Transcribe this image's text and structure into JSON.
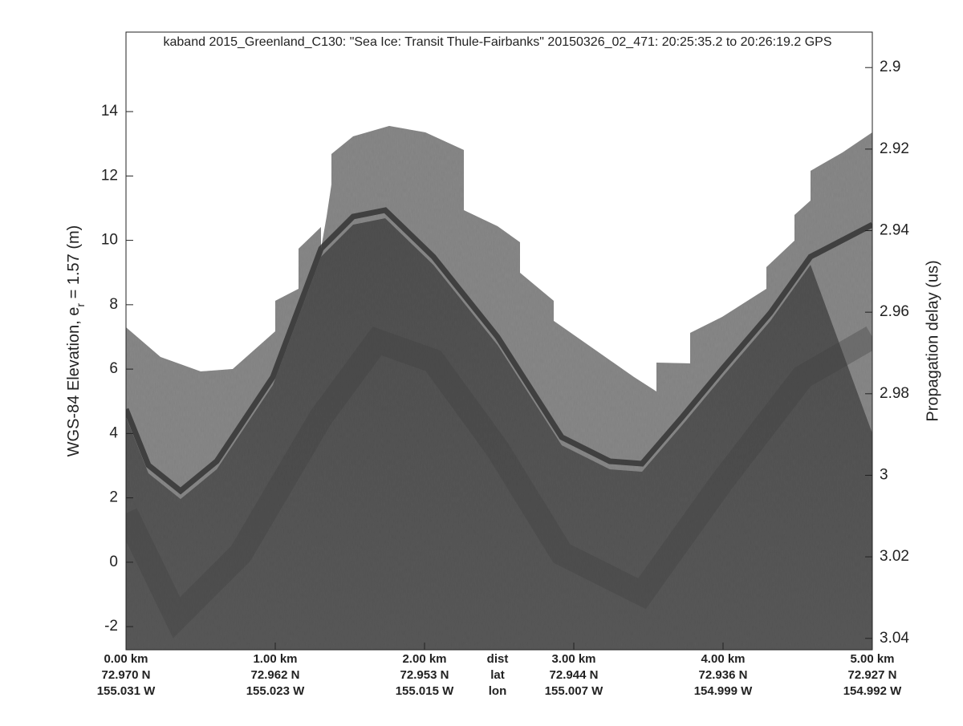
{
  "chart_data": {
    "type": "echogram",
    "title": "kaband 2015_Greenland_C130: \"Sea Ice: Transit Thule-Fairbanks\"  20150326_02_471: 20:25:35.2 to 20:26:19.2 GPS",
    "ylabel": {
      "text": "WGS-84 Elevation, e",
      "subscript": "r",
      "suffix": " = 1.57 (m)"
    },
    "y2label": "Propagation delay (us)",
    "xlim": [
      0,
      5
    ],
    "xticks": [
      {
        "value": 0,
        "label": "0.00 km"
      },
      {
        "value": 1,
        "label": "1.00 km"
      },
      {
        "value": 2,
        "label": "2.00 km"
      },
      {
        "value": 3,
        "label": "3.00 km"
      },
      {
        "value": 4,
        "label": "4.00 km"
      },
      {
        "value": 5,
        "label": "5.00 km"
      }
    ],
    "xtick_lat": [
      "72.970 N",
      "72.962 N",
      "72.953 N",
      "72.944 N",
      "72.936 N",
      "72.927 N"
    ],
    "xtick_lon": [
      "155.031 W",
      "155.023 W",
      "155.015 W",
      "155.007 W",
      "154.999 W",
      "154.992 W"
    ],
    "xtick_row_names": [
      "dist",
      "lat",
      "lon"
    ],
    "ylim": [
      -2.72,
      16.47
    ],
    "yticks": [
      -2,
      0,
      2,
      4,
      6,
      8,
      10,
      12,
      14
    ],
    "y2lim": [
      2.8913,
      3.0428
    ],
    "y2_reversed": true,
    "y2ticks": [
      2.9,
      2.92,
      2.94,
      2.96,
      2.98,
      3,
      3.02,
      3.04
    ]
  }
}
